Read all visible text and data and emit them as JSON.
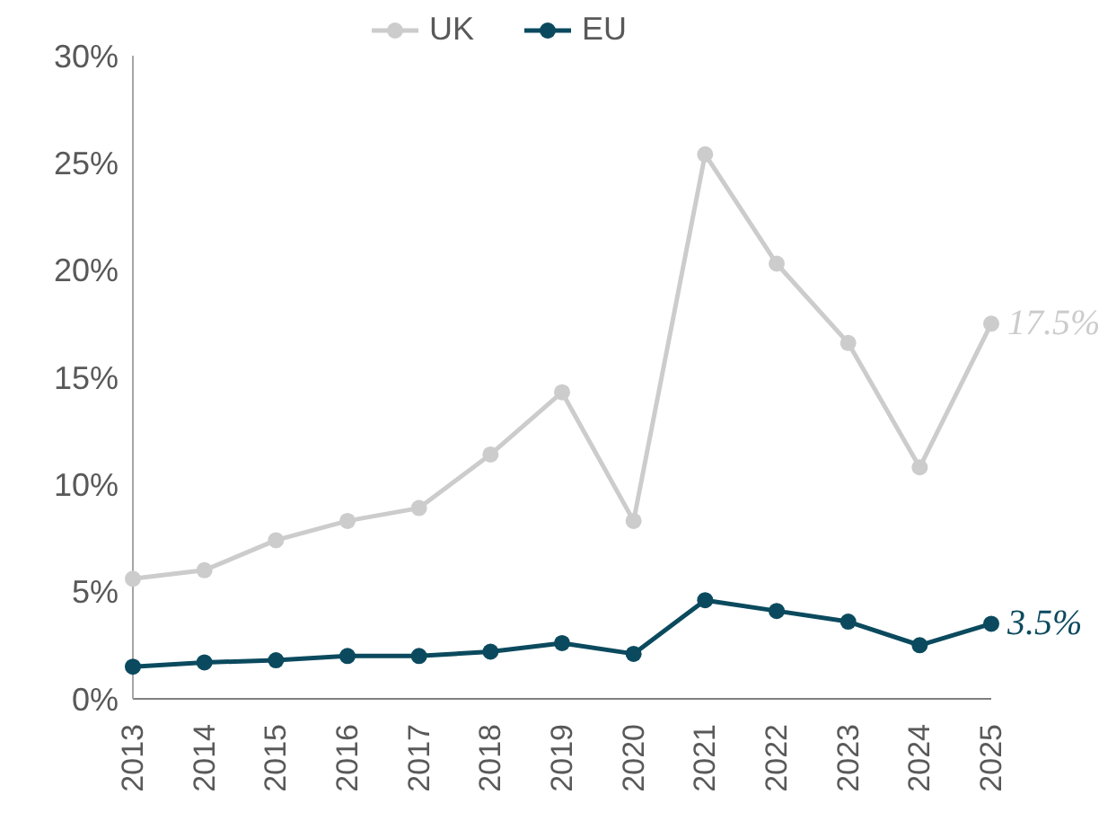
{
  "chart_data": {
    "type": "line",
    "categories": [
      "2013",
      "2014",
      "2015",
      "2016",
      "2017",
      "2018",
      "2019",
      "2020",
      "2021",
      "2022",
      "2023",
      "2024",
      "2025"
    ],
    "series": [
      {
        "name": "UK",
        "color": "#cccccc",
        "values": [
          5.6,
          6.0,
          7.4,
          8.3,
          8.9,
          11.4,
          14.3,
          8.3,
          25.4,
          20.3,
          16.6,
          10.8,
          17.5
        ],
        "value_labels": [
          null,
          null,
          null,
          null,
          null,
          null,
          null,
          null,
          null,
          null,
          null,
          null,
          "17.5%"
        ]
      },
      {
        "name": "EU",
        "color": "#0b4a5e",
        "values": [
          1.5,
          1.7,
          1.8,
          2.0,
          2.0,
          2.2,
          2.6,
          2.1,
          4.6,
          4.1,
          3.6,
          2.5,
          3.5
        ],
        "value_labels": [
          null,
          null,
          null,
          null,
          null,
          null,
          null,
          null,
          null,
          null,
          null,
          null,
          "3.5%"
        ]
      }
    ],
    "ylim": [
      0,
      30
    ],
    "yticks": [
      {
        "value": 0,
        "label": "0%"
      },
      {
        "value": 5,
        "label": "5%"
      },
      {
        "value": 10,
        "label": "10%"
      },
      {
        "value": 15,
        "label": "15%"
      },
      {
        "value": 20,
        "label": "20%"
      },
      {
        "value": 25,
        "label": "25%"
      },
      {
        "value": 30,
        "label": "30%"
      }
    ],
    "grid": false,
    "legend": "top",
    "marker": "circle",
    "line_style": "solid"
  }
}
